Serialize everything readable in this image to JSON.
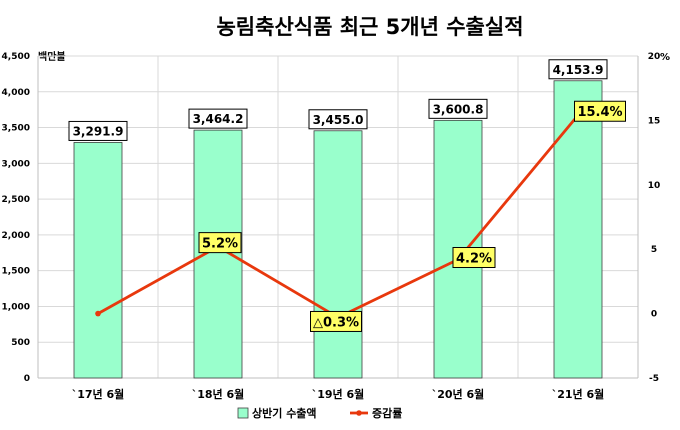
{
  "chart_data": {
    "type": "bar",
    "title": "농림축산식품 최근  5개년 수출실적",
    "ylabel_left": "백만불",
    "ylabel_right": "%",
    "categories": [
      "`17년 6월",
      "`18년 6월",
      "`19년 6월",
      "`20년 6월",
      "`21년 6월"
    ],
    "y_left_ticks": [
      "0",
      "500",
      "1,000",
      "1,500",
      "2,000",
      "2,500",
      "3,000",
      "3,500",
      "4,000",
      "4,500"
    ],
    "y_right_ticks": [
      "-5",
      "0",
      "5",
      "10",
      "15",
      "20"
    ],
    "ylim_left": [
      0,
      4500
    ],
    "ylim_right": [
      -5,
      20
    ],
    "series": [
      {
        "name": "상반기 수출액",
        "type": "bar",
        "axis": "left",
        "color": "#99ffcc",
        "values": [
          3291.9,
          3464.2,
          3455.0,
          3600.8,
          4153.9
        ],
        "labels": [
          "3,291.9",
          "3,464.2",
          "3,455.0",
          "3,600.8",
          "4,153.9"
        ]
      },
      {
        "name": "증감률",
        "type": "line",
        "axis": "right",
        "color": "#e8380d",
        "values": [
          0,
          5.2,
          -0.3,
          4.2,
          15.4
        ],
        "labels": [
          "",
          "5.2%",
          "△0.3%",
          "4.2%",
          "15.4%"
        ]
      }
    ],
    "grid": true,
    "legend": "bottom"
  }
}
